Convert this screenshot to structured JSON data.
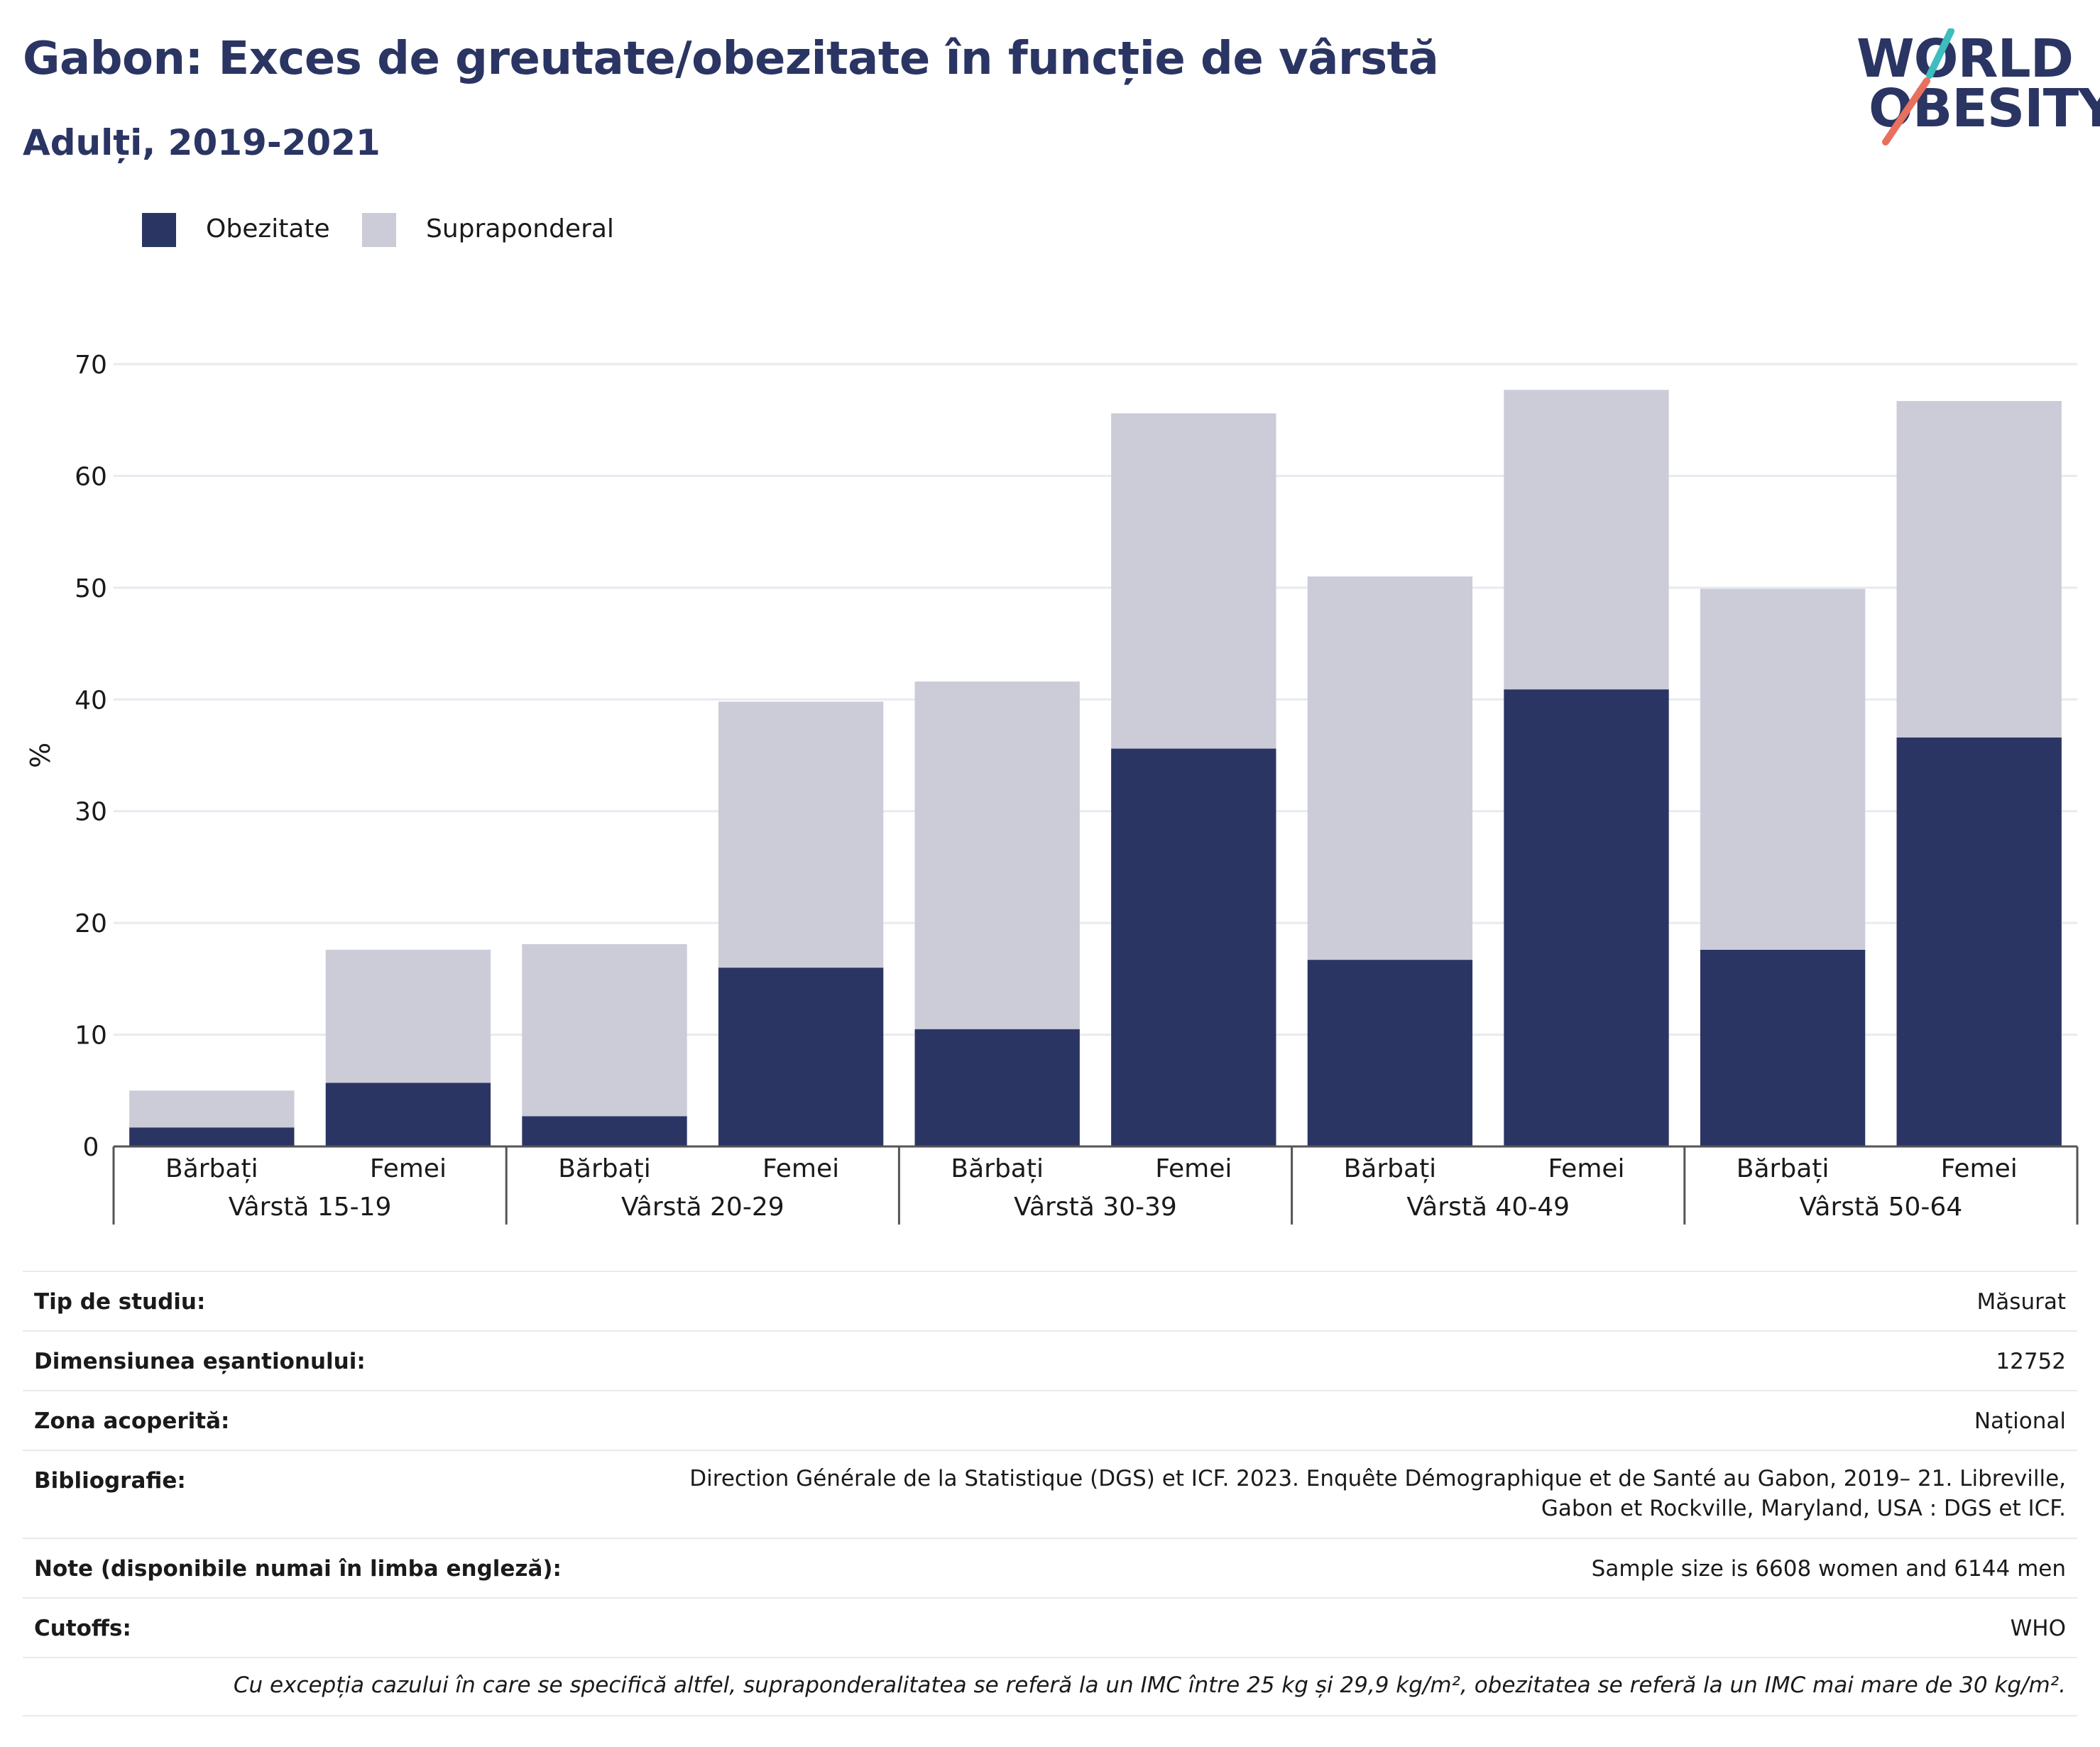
{
  "header": {
    "title": "Gabon: Exces de greutate/obezitate în funcție de vârstă",
    "subtitle": "Adulți, 2019-2021"
  },
  "logo": {
    "line1": "WORLD",
    "line2": "OBESITY",
    "accent_teal": "#3dbdbd",
    "accent_coral": "#e8705e"
  },
  "legend": {
    "items": [
      {
        "label": "Obezitate",
        "color": "#2b3563"
      },
      {
        "label": "Supraponderal",
        "color": "#cbccd8"
      }
    ]
  },
  "chart_data": {
    "type": "bar",
    "stacked": true,
    "ylabel": "%",
    "ylim": [
      0,
      70
    ],
    "yticks": [
      0,
      10,
      20,
      30,
      40,
      50,
      60,
      70
    ],
    "grid": true,
    "legend_position": "top-left",
    "groups": [
      "Vârstă 15-19",
      "Vârstă 20-29",
      "Vârstă 30-39",
      "Vârstă 40-49",
      "Vârstă 50-64"
    ],
    "subcategories": [
      "Bărbați",
      "Femei"
    ],
    "series": [
      {
        "name": "Obezitate",
        "color": "#2b3563",
        "values": [
          1.7,
          5.7,
          2.7,
          16.0,
          10.5,
          35.6,
          16.7,
          40.9,
          17.6,
          36.6
        ]
      },
      {
        "name": "Supraponderal",
        "color": "#cbccd8",
        "values": [
          3.3,
          11.9,
          15.4,
          23.8,
          31.1,
          30.0,
          34.3,
          26.8,
          32.3,
          30.1
        ]
      }
    ]
  },
  "info": {
    "rows": [
      {
        "label": "Tip de studiu:",
        "value": "Măsurat"
      },
      {
        "label": "Dimensiunea eșantionului:",
        "value": "12752"
      },
      {
        "label": "Zona acoperită:",
        "value": "Național"
      },
      {
        "label": "Bibliografie:",
        "value": "Direction Générale de la Statistique (DGS) et ICF. 2023. Enquête Démographique et de Santé au Gabon, 2019– 21. Libreville, Gabon et Rockville, Maryland, USA : DGS et ICF."
      },
      {
        "label": "Note (disponibile numai în limba engleză):",
        "value": "Sample size is 6608 women and 6144 men"
      },
      {
        "label": "Cutoffs:",
        "value": "WHO"
      }
    ],
    "footnote": "Cu excepția cazului în care se specifică altfel, supraponderalitatea se referă la un IMC între 25 kg și 29,9 kg/m², obezitatea se referă la un IMC mai mare de 30 kg/m²."
  }
}
